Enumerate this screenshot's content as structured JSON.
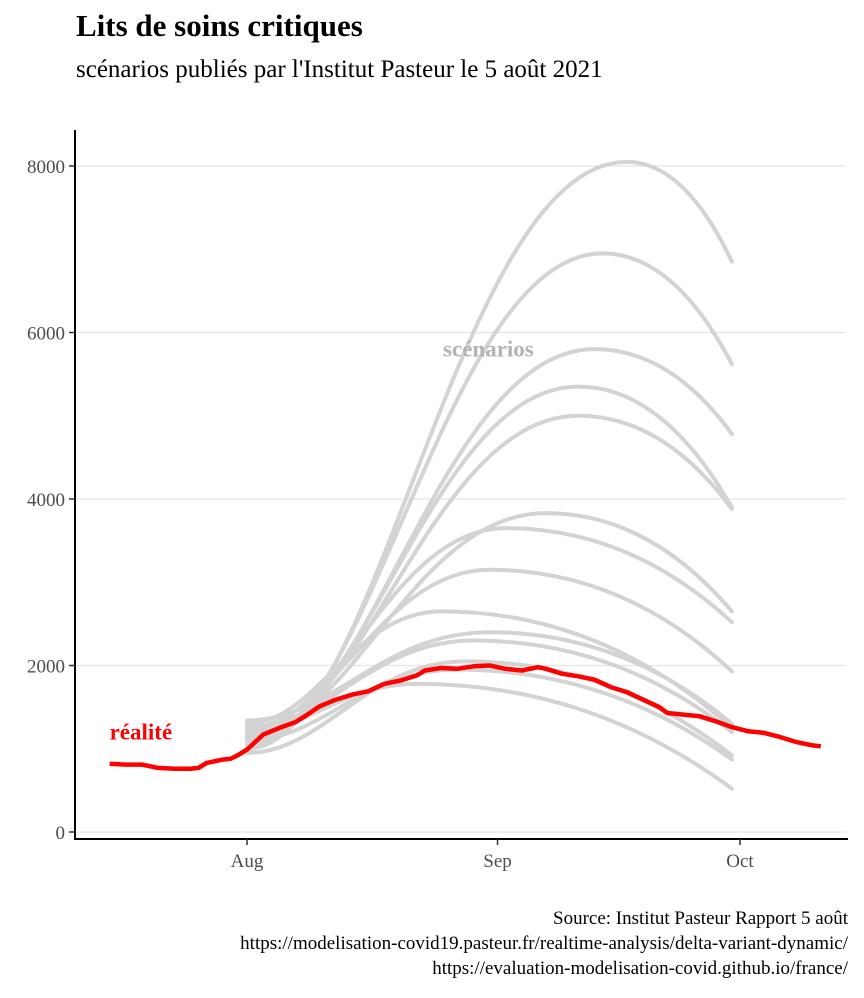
{
  "title": "Lits de soins critiques",
  "subtitle": "scénarios publiés par l'Institut Pasteur le 5 août 2021",
  "caption": {
    "line1": "Source: Institut Pasteur Rapport 5 août",
    "line2": "https://modelisation-covid19.pasteur.fr/realtime-analysis/delta-variant-dynamic/",
    "line3": "https://evaluation-modelisation-covid.github.io/france/"
  },
  "colors": {
    "reality": "#ff0000",
    "scenario": "#d3d3d3",
    "scenario_label": "#b3b3b3",
    "grid": "#e5e5e5"
  },
  "chart_data": {
    "type": "line",
    "title": "Lits de soins critiques",
    "subtitle": "scénarios publiés par l'Institut Pasteur le 5 août 2021",
    "xlabel": "",
    "ylabel": "",
    "x_axis": {
      "type": "date",
      "range": [
        "2021-07-15",
        "2021-10-12"
      ],
      "ticks": [
        "2021-08-01",
        "2021-09-01",
        "2021-10-01"
      ],
      "tick_labels": [
        "Aug",
        "Sep",
        "Oct"
      ]
    },
    "y_axis": {
      "range": [
        0,
        8400
      ],
      "ticks": [
        0,
        2000,
        4000,
        6000,
        8000
      ],
      "tick_labels": [
        "0",
        "2000",
        "4000",
        "6000",
        "8000"
      ]
    },
    "grid": "horizontal major lines",
    "annotations": [
      {
        "text": "réalité",
        "x": "2021-07-15",
        "y": 1150,
        "color": "#ff0000"
      },
      {
        "text": "scénarios",
        "x": "2021-08-26",
        "y": 5750,
        "color": "#b3b3b3"
      }
    ],
    "series": [
      {
        "label": "réalité",
        "color": "#ff0000",
        "points": [
          [
            "2021-07-15",
            820
          ],
          [
            "2021-07-17",
            810
          ],
          [
            "2021-07-19",
            810
          ],
          [
            "2021-07-21",
            770
          ],
          [
            "2021-07-23",
            760
          ],
          [
            "2021-07-25",
            760
          ],
          [
            "2021-07-26",
            770
          ],
          [
            "2021-07-27",
            830
          ],
          [
            "2021-07-29",
            870
          ],
          [
            "2021-07-30",
            880
          ],
          [
            "2021-07-31",
            930
          ],
          [
            "2021-08-01",
            990
          ],
          [
            "2021-08-03",
            1170
          ],
          [
            "2021-08-05",
            1250
          ],
          [
            "2021-08-07",
            1320
          ],
          [
            "2021-08-08",
            1380
          ],
          [
            "2021-08-10",
            1510
          ],
          [
            "2021-08-12",
            1590
          ],
          [
            "2021-08-14",
            1650
          ],
          [
            "2021-08-16",
            1690
          ],
          [
            "2021-08-18",
            1780
          ],
          [
            "2021-08-20",
            1820
          ],
          [
            "2021-08-22",
            1880
          ],
          [
            "2021-08-23",
            1940
          ],
          [
            "2021-08-25",
            1970
          ],
          [
            "2021-08-27",
            1960
          ],
          [
            "2021-08-29",
            1990
          ],
          [
            "2021-08-31",
            2000
          ],
          [
            "2021-09-02",
            1960
          ],
          [
            "2021-09-04",
            1940
          ],
          [
            "2021-09-06",
            1980
          ],
          [
            "2021-09-07",
            1960
          ],
          [
            "2021-09-09",
            1900
          ],
          [
            "2021-09-11",
            1870
          ],
          [
            "2021-09-13",
            1830
          ],
          [
            "2021-09-15",
            1740
          ],
          [
            "2021-09-17",
            1680
          ],
          [
            "2021-09-19",
            1590
          ],
          [
            "2021-09-21",
            1500
          ],
          [
            "2021-09-22",
            1430
          ],
          [
            "2021-09-24",
            1410
          ],
          [
            "2021-09-26",
            1390
          ],
          [
            "2021-09-28",
            1330
          ],
          [
            "2021-09-30",
            1260
          ],
          [
            "2021-10-02",
            1210
          ],
          [
            "2021-10-04",
            1190
          ],
          [
            "2021-10-06",
            1140
          ],
          [
            "2021-10-08",
            1080
          ],
          [
            "2021-10-10",
            1040
          ],
          [
            "2021-10-11",
            1030
          ]
        ]
      },
      {
        "label": "",
        "color": "#d3d3d3",
        "start": [
          "2021-08-01",
          1000
        ],
        "peak": [
          "2021-09-17",
          8050
        ],
        "end": [
          "2021-09-30",
          6850
        ]
      },
      {
        "label": "",
        "color": "#d3d3d3",
        "start": [
          "2021-08-01",
          1050
        ],
        "peak": [
          "2021-09-14",
          6950
        ],
        "end": [
          "2021-09-30",
          5620
        ]
      },
      {
        "label": "",
        "color": "#d3d3d3",
        "start": [
          "2021-08-01",
          1100
        ],
        "peak": [
          "2021-09-13",
          5800
        ],
        "end": [
          "2021-09-30",
          4780
        ]
      },
      {
        "label": "",
        "color": "#d3d3d3",
        "start": [
          "2021-08-01",
          1120
        ],
        "peak": [
          "2021-09-11",
          5350
        ],
        "end": [
          "2021-09-30",
          3900
        ]
      },
      {
        "label": "",
        "color": "#d3d3d3",
        "start": [
          "2021-08-01",
          1150
        ],
        "peak": [
          "2021-09-11",
          5000
        ],
        "end": [
          "2021-09-30",
          3880
        ]
      },
      {
        "label": "",
        "color": "#d3d3d3",
        "start": [
          "2021-08-01",
          1180
        ],
        "peak": [
          "2021-09-07",
          3830
        ],
        "end": [
          "2021-09-30",
          2650
        ]
      },
      {
        "label": "",
        "color": "#d3d3d3",
        "start": [
          "2021-08-01",
          1220
        ],
        "peak": [
          "2021-09-02",
          3650
        ],
        "end": [
          "2021-09-30",
          2520
        ]
      },
      {
        "label": "",
        "color": "#d3d3d3",
        "start": [
          "2021-08-01",
          1250
        ],
        "peak": [
          "2021-08-31",
          3150
        ],
        "end": [
          "2021-09-30",
          1930
        ]
      },
      {
        "label": "",
        "color": "#d3d3d3",
        "start": [
          "2021-08-01",
          1300
        ],
        "peak": [
          "2021-08-25",
          2650
        ],
        "end": [
          "2021-09-30",
          1250
        ]
      },
      {
        "label": "",
        "color": "#d3d3d3",
        "start": [
          "2021-08-01",
          1340
        ],
        "peak": [
          "2021-08-31",
          2400
        ],
        "end": [
          "2021-09-30",
          1300
        ]
      },
      {
        "label": "",
        "color": "#d3d3d3",
        "start": [
          "2021-08-01",
          1260
        ],
        "peak": [
          "2021-08-29",
          2300
        ],
        "end": [
          "2021-09-30",
          1200
        ]
      },
      {
        "label": "",
        "color": "#d3d3d3",
        "start": [
          "2021-08-01",
          1200
        ],
        "peak": [
          "2021-08-22",
          1780
        ],
        "end": [
          "2021-09-30",
          520
        ]
      },
      {
        "label": "",
        "color": "#d3d3d3",
        "start": [
          "2021-08-01",
          1100
        ],
        "peak": [
          "2021-08-27",
          1950
        ],
        "end": [
          "2021-09-30",
          870
        ]
      },
      {
        "label": "",
        "color": "#d3d3d3",
        "start": [
          "2021-08-01",
          950
        ],
        "peak": [
          "2021-08-28",
          2050
        ],
        "end": [
          "2021-09-30",
          920
        ]
      }
    ]
  }
}
